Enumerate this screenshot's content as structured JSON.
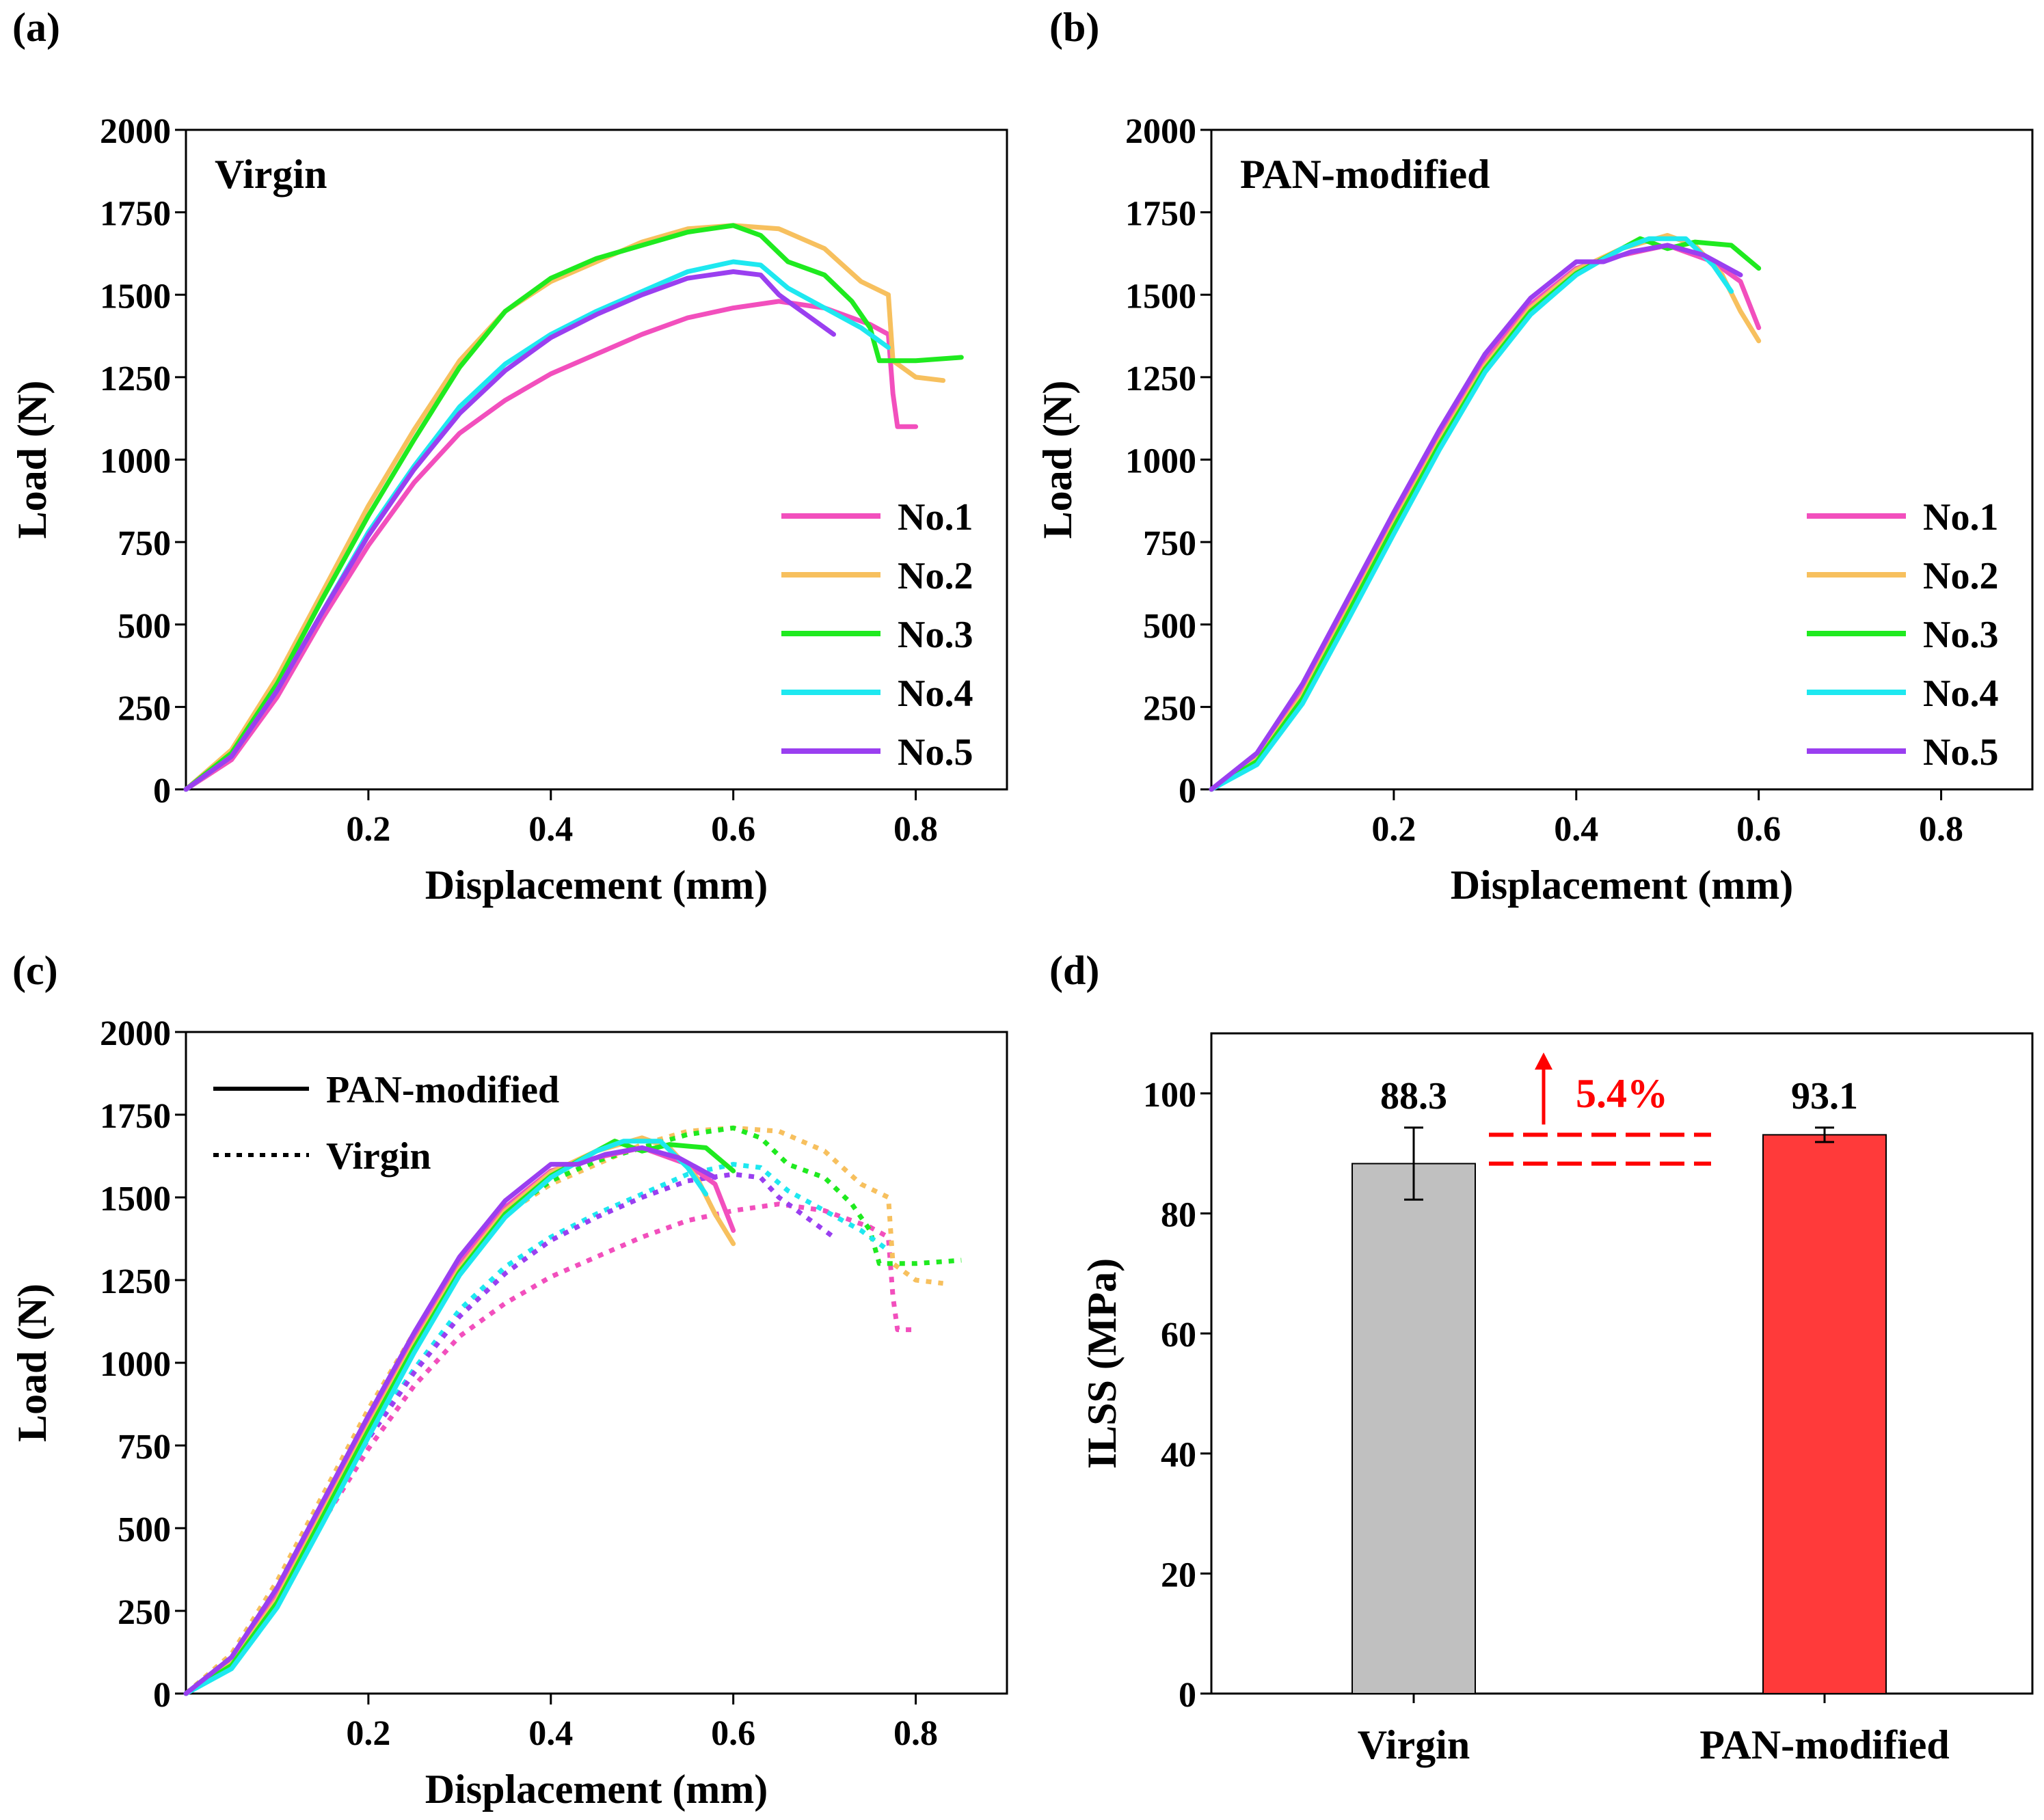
{
  "colors": {
    "no1": "#f24fbd",
    "no2": "#f7c05e",
    "no3": "#1fea1f",
    "no4": "#1ee8f0",
    "no5": "#9a3ff0",
    "virgin_bar": "#c0c0c0",
    "pan_bar": "#ff3a3a",
    "annotation": "#ff0000",
    "axis": "#000000"
  },
  "chart_data": [
    {
      "type": "line",
      "panel_label": "(a)",
      "title": "Virgin",
      "xlabel": "Displacement (mm)",
      "ylabel": "Load (N)",
      "xlim": [
        0,
        0.9
      ],
      "ylim": [
        0,
        2000
      ],
      "xticks": [
        0.2,
        0.4,
        0.6,
        0.8
      ],
      "xtick_labels": [
        "0.2",
        "0.4",
        "0.6",
        "0.8"
      ],
      "yticks": [
        0,
        250,
        500,
        750,
        1000,
        1250,
        1500,
        1750,
        2000
      ],
      "ytick_labels": [
        "0",
        "250",
        "500",
        "750",
        "1000",
        "1250",
        "1500",
        "1750",
        "2000"
      ],
      "legend": [
        "No.1",
        "No.2",
        "No.3",
        "No.4",
        "No.5"
      ],
      "legend_position": "right",
      "series": [
        {
          "name": "No.1",
          "color_key": "no1",
          "style": "solid",
          "points": [
            [
              0,
              0
            ],
            [
              0.05,
              90
            ],
            [
              0.1,
              280
            ],
            [
              0.15,
              520
            ],
            [
              0.2,
              740
            ],
            [
              0.25,
              930
            ],
            [
              0.3,
              1080
            ],
            [
              0.35,
              1180
            ],
            [
              0.4,
              1260
            ],
            [
              0.45,
              1320
            ],
            [
              0.5,
              1380
            ],
            [
              0.55,
              1430
            ],
            [
              0.6,
              1460
            ],
            [
              0.65,
              1480
            ],
            [
              0.7,
              1460
            ],
            [
              0.75,
              1410
            ],
            [
              0.77,
              1380
            ],
            [
              0.775,
              1200
            ],
            [
              0.78,
              1100
            ],
            [
              0.8,
              1100
            ]
          ]
        },
        {
          "name": "No.2",
          "color_key": "no2",
          "style": "solid",
          "points": [
            [
              0,
              0
            ],
            [
              0.05,
              120
            ],
            [
              0.1,
              340
            ],
            [
              0.15,
              600
            ],
            [
              0.2,
              860
            ],
            [
              0.25,
              1090
            ],
            [
              0.3,
              1300
            ],
            [
              0.35,
              1450
            ],
            [
              0.4,
              1540
            ],
            [
              0.45,
              1600
            ],
            [
              0.5,
              1660
            ],
            [
              0.55,
              1700
            ],
            [
              0.6,
              1710
            ],
            [
              0.65,
              1700
            ],
            [
              0.7,
              1640
            ],
            [
              0.74,
              1540
            ],
            [
              0.77,
              1500
            ],
            [
              0.775,
              1300
            ],
            [
              0.8,
              1250
            ],
            [
              0.83,
              1240
            ]
          ]
        },
        {
          "name": "No.3",
          "color_key": "no3",
          "style": "solid",
          "points": [
            [
              0,
              0
            ],
            [
              0.05,
              110
            ],
            [
              0.1,
              320
            ],
            [
              0.15,
              580
            ],
            [
              0.2,
              830
            ],
            [
              0.25,
              1060
            ],
            [
              0.3,
              1280
            ],
            [
              0.35,
              1450
            ],
            [
              0.4,
              1550
            ],
            [
              0.45,
              1610
            ],
            [
              0.5,
              1650
            ],
            [
              0.55,
              1690
            ],
            [
              0.6,
              1710
            ],
            [
              0.63,
              1680
            ],
            [
              0.66,
              1600
            ],
            [
              0.7,
              1560
            ],
            [
              0.73,
              1480
            ],
            [
              0.75,
              1400
            ],
            [
              0.76,
              1300
            ],
            [
              0.8,
              1300
            ],
            [
              0.85,
              1310
            ]
          ]
        },
        {
          "name": "No.4",
          "color_key": "no4",
          "style": "solid",
          "points": [
            [
              0,
              0
            ],
            [
              0.05,
              100
            ],
            [
              0.1,
              300
            ],
            [
              0.15,
              540
            ],
            [
              0.2,
              780
            ],
            [
              0.25,
              980
            ],
            [
              0.3,
              1160
            ],
            [
              0.35,
              1290
            ],
            [
              0.4,
              1380
            ],
            [
              0.45,
              1450
            ],
            [
              0.5,
              1510
            ],
            [
              0.55,
              1570
            ],
            [
              0.6,
              1600
            ],
            [
              0.63,
              1590
            ],
            [
              0.66,
              1520
            ],
            [
              0.7,
              1460
            ],
            [
              0.74,
              1400
            ],
            [
              0.77,
              1340
            ]
          ]
        },
        {
          "name": "No.5",
          "color_key": "no5",
          "style": "solid",
          "points": [
            [
              0,
              0
            ],
            [
              0.05,
              100
            ],
            [
              0.1,
              300
            ],
            [
              0.15,
              540
            ],
            [
              0.2,
              770
            ],
            [
              0.25,
              970
            ],
            [
              0.3,
              1140
            ],
            [
              0.35,
              1270
            ],
            [
              0.4,
              1370
            ],
            [
              0.45,
              1440
            ],
            [
              0.5,
              1500
            ],
            [
              0.55,
              1550
            ],
            [
              0.6,
              1570
            ],
            [
              0.63,
              1560
            ],
            [
              0.65,
              1500
            ],
            [
              0.68,
              1440
            ],
            [
              0.71,
              1380
            ]
          ]
        }
      ]
    },
    {
      "type": "line",
      "panel_label": "(b)",
      "title": "PAN-modified",
      "xlabel": "Displacement (mm)",
      "ylabel": "Load (N)",
      "xlim": [
        0,
        0.9
      ],
      "ylim": [
        0,
        2000
      ],
      "xticks": [
        0.2,
        0.4,
        0.6,
        0.8
      ],
      "xtick_labels": [
        "0.2",
        "0.4",
        "0.6",
        "0.8"
      ],
      "yticks": [
        0,
        250,
        500,
        750,
        1000,
        1250,
        1500,
        1750,
        2000
      ],
      "ytick_labels": [
        "0",
        "250",
        "500",
        "750",
        "1000",
        "1250",
        "1500",
        "1750",
        "2000"
      ],
      "legend": [
        "No.1",
        "No.2",
        "No.3",
        "No.4",
        "No.5"
      ],
      "legend_position": "right",
      "series": [
        {
          "name": "No.1",
          "color_key": "no1",
          "style": "solid",
          "points": [
            [
              0,
              0
            ],
            [
              0.05,
              100
            ],
            [
              0.1,
              300
            ],
            [
              0.15,
              560
            ],
            [
              0.2,
              820
            ],
            [
              0.25,
              1070
            ],
            [
              0.3,
              1300
            ],
            [
              0.35,
              1470
            ],
            [
              0.4,
              1580
            ],
            [
              0.45,
              1620
            ],
            [
              0.5,
              1650
            ],
            [
              0.55,
              1600
            ],
            [
              0.58,
              1540
            ],
            [
              0.6,
              1400
            ]
          ]
        },
        {
          "name": "No.2",
          "color_key": "no2",
          "style": "solid",
          "points": [
            [
              0,
              0
            ],
            [
              0.05,
              90
            ],
            [
              0.1,
              285
            ],
            [
              0.15,
              545
            ],
            [
              0.2,
              805
            ],
            [
              0.25,
              1055
            ],
            [
              0.3,
              1285
            ],
            [
              0.35,
              1460
            ],
            [
              0.4,
              1575
            ],
            [
              0.45,
              1640
            ],
            [
              0.5,
              1680
            ],
            [
              0.53,
              1650
            ],
            [
              0.56,
              1560
            ],
            [
              0.58,
              1450
            ],
            [
              0.6,
              1360
            ]
          ]
        },
        {
          "name": "No.3",
          "color_key": "no3",
          "style": "solid",
          "points": [
            [
              0,
              0
            ],
            [
              0.05,
              85
            ],
            [
              0.1,
              275
            ],
            [
              0.15,
              535
            ],
            [
              0.2,
              795
            ],
            [
              0.25,
              1045
            ],
            [
              0.3,
              1275
            ],
            [
              0.35,
              1450
            ],
            [
              0.4,
              1565
            ],
            [
              0.45,
              1640
            ],
            [
              0.47,
              1670
            ],
            [
              0.5,
              1640
            ],
            [
              0.53,
              1660
            ],
            [
              0.57,
              1650
            ],
            [
              0.6,
              1580
            ]
          ]
        },
        {
          "name": "No.4",
          "color_key": "no4",
          "style": "solid",
          "points": [
            [
              0,
              0
            ],
            [
              0.05,
              75
            ],
            [
              0.1,
              260
            ],
            [
              0.15,
              515
            ],
            [
              0.2,
              775
            ],
            [
              0.25,
              1030
            ],
            [
              0.3,
              1265
            ],
            [
              0.35,
              1440
            ],
            [
              0.4,
              1560
            ],
            [
              0.45,
              1640
            ],
            [
              0.48,
              1670
            ],
            [
              0.52,
              1670
            ],
            [
              0.55,
              1590
            ],
            [
              0.57,
              1510
            ]
          ]
        },
        {
          "name": "No.5",
          "color_key": "no5",
          "style": "solid",
          "points": [
            [
              0,
              0
            ],
            [
              0.05,
              110
            ],
            [
              0.1,
              320
            ],
            [
              0.15,
              580
            ],
            [
              0.2,
              840
            ],
            [
              0.25,
              1090
            ],
            [
              0.3,
              1320
            ],
            [
              0.35,
              1490
            ],
            [
              0.4,
              1600
            ],
            [
              0.43,
              1600
            ],
            [
              0.46,
              1630
            ],
            [
              0.5,
              1650
            ],
            [
              0.54,
              1620
            ],
            [
              0.58,
              1560
            ]
          ]
        }
      ]
    },
    {
      "type": "line",
      "panel_label": "(c)",
      "title": "",
      "xlabel": "Displacement (mm)",
      "ylabel": "Load (N)",
      "xlim": [
        0,
        0.9
      ],
      "ylim": [
        0,
        2000
      ],
      "xticks": [
        0.2,
        0.4,
        0.6,
        0.8
      ],
      "xtick_labels": [
        "0.2",
        "0.4",
        "0.6",
        "0.8"
      ],
      "yticks": [
        0,
        250,
        500,
        750,
        1000,
        1250,
        1500,
        1750,
        2000
      ],
      "ytick_labels": [
        "0",
        "250",
        "500",
        "750",
        "1000",
        "1250",
        "1500",
        "1750",
        "2000"
      ],
      "legend": [
        "PAN-modified",
        "Virgin"
      ],
      "legend_styles": [
        "solid",
        "dotted"
      ],
      "legend_position": "top-left",
      "series_note": "solid = PAN-modified No.1-No.5, dotted = Virgin No.1-No.5 (same data as panels a and b)"
    },
    {
      "type": "bar",
      "panel_label": "(d)",
      "title": "",
      "xlabel": "",
      "ylabel": "ILSS (MPa)",
      "categories": [
        "Virgin",
        "PAN-modified"
      ],
      "values": [
        88.3,
        93.1
      ],
      "value_labels": [
        "88.3",
        "93.1"
      ],
      "errors": [
        6.0,
        1.2
      ],
      "ylim": [
        0,
        110
      ],
      "yticks": [
        0,
        20,
        40,
        60,
        80,
        100
      ],
      "ytick_labels": [
        "0",
        "20",
        "40",
        "60",
        "80",
        "100"
      ],
      "annotation": "5.4%"
    }
  ]
}
